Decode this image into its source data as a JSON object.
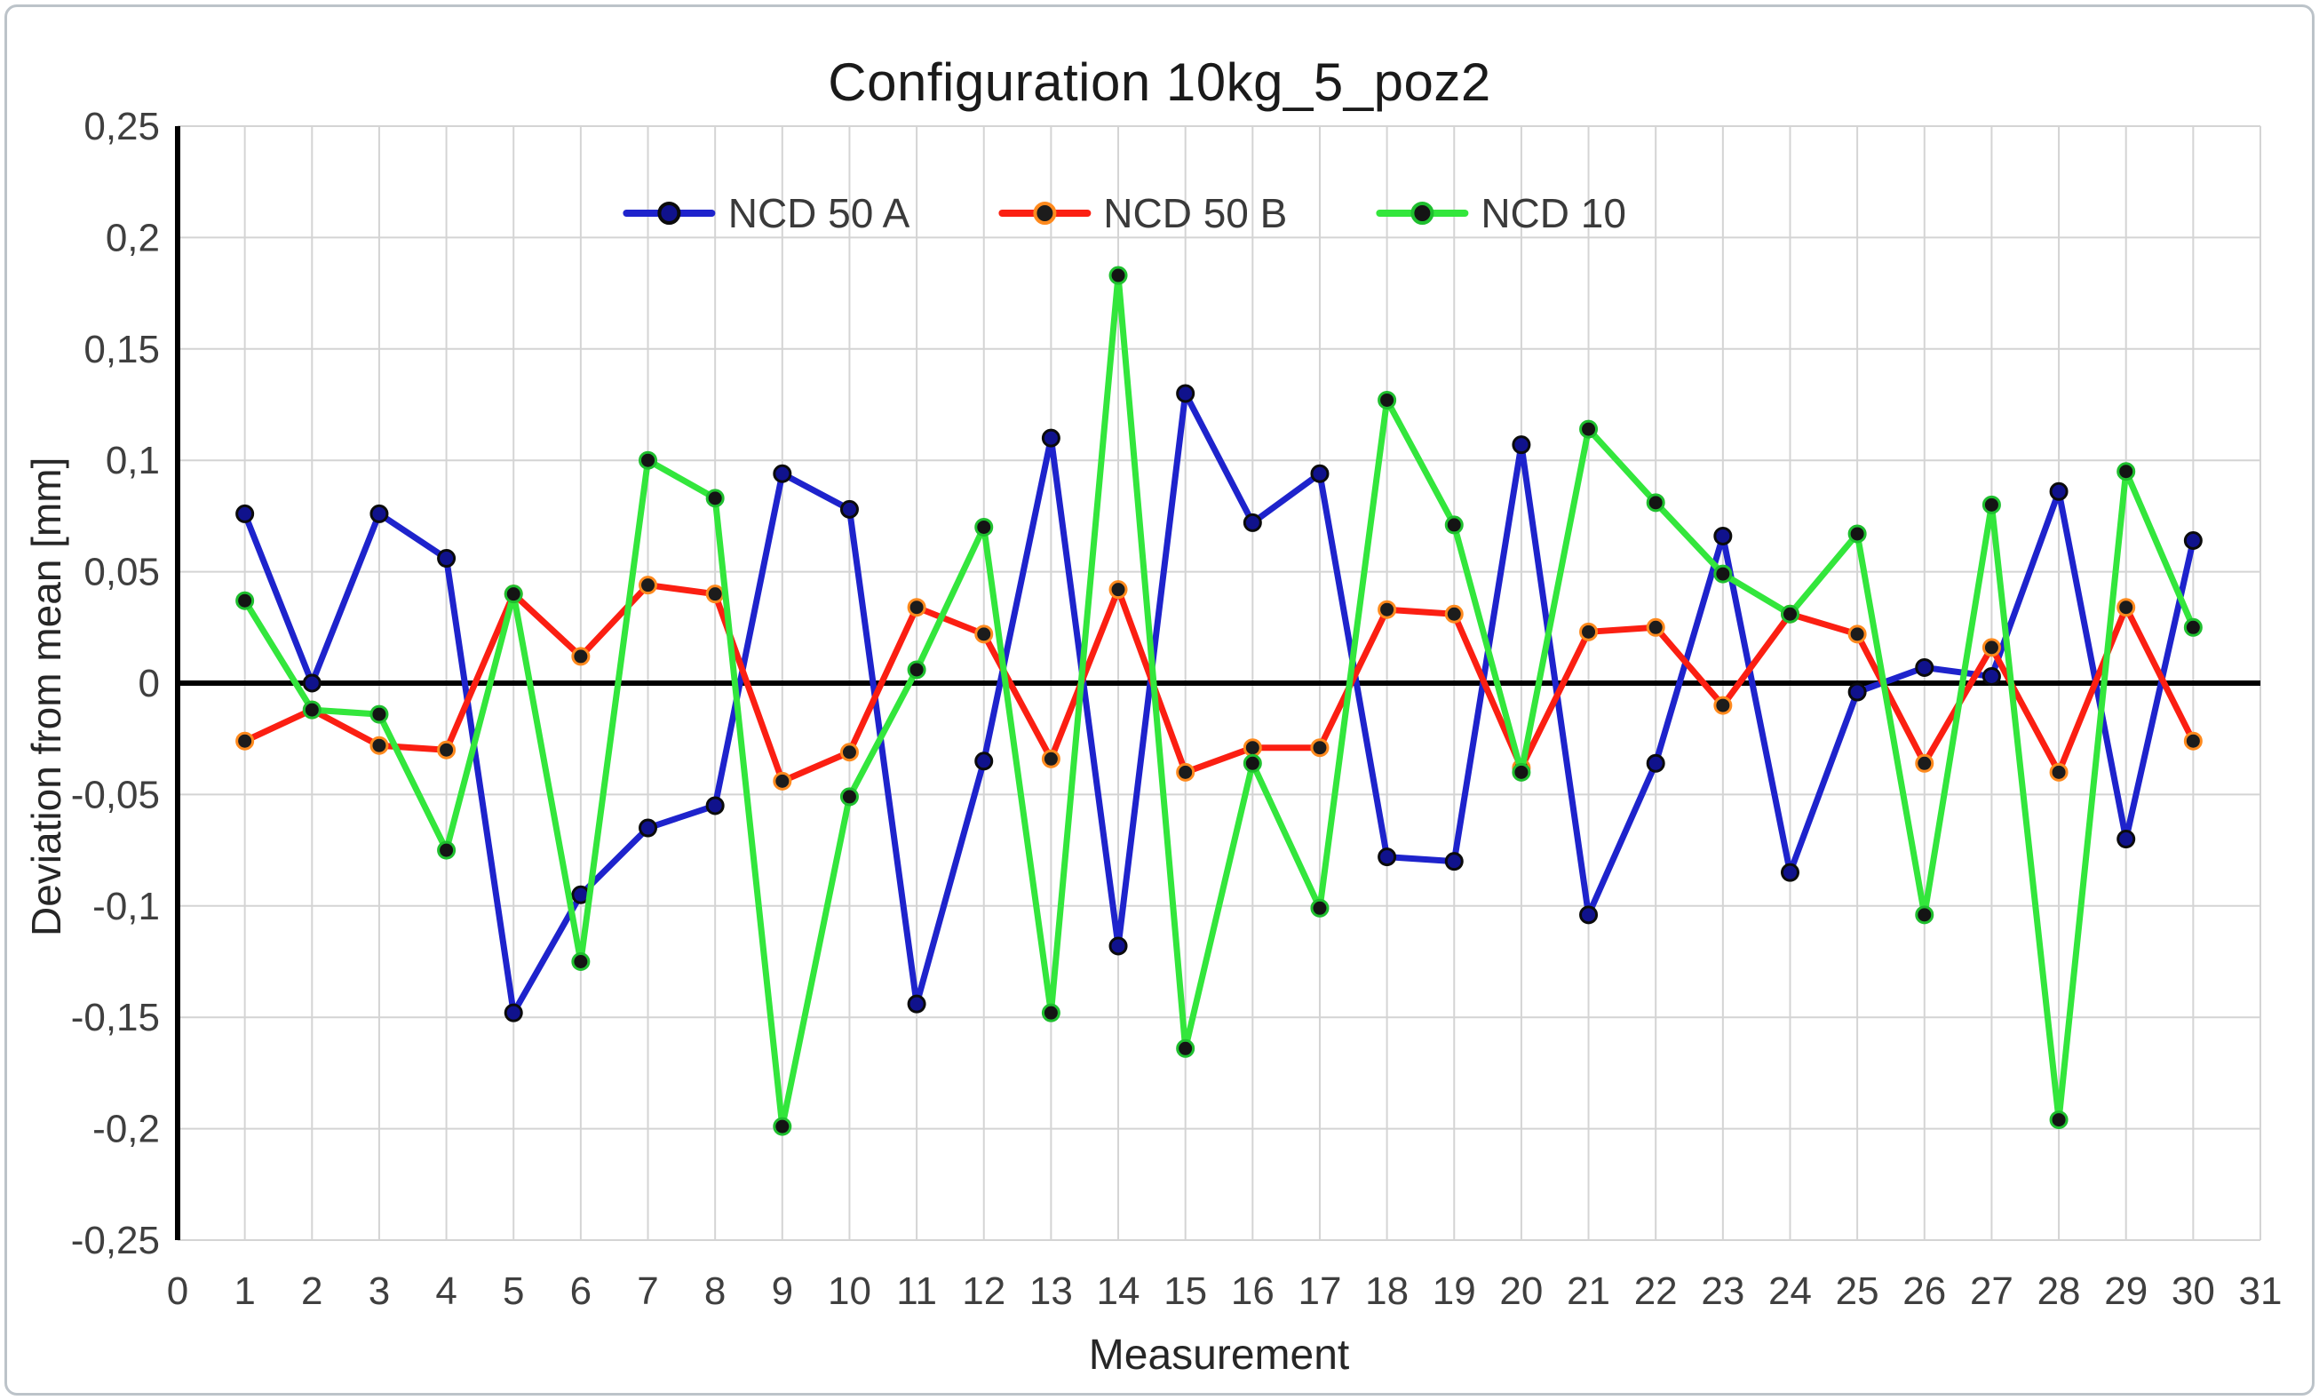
{
  "chart_data": {
    "type": "line",
    "title": "Configuration 10kg_5_poz2",
    "xlabel": "Measurement",
    "ylabel": "Deviation from mean [mm]",
    "xlim": [
      0,
      31
    ],
    "ylim": [
      -0.25,
      0.25
    ],
    "x_ticks": [
      0,
      1,
      2,
      3,
      4,
      5,
      6,
      7,
      8,
      9,
      10,
      11,
      12,
      13,
      14,
      15,
      16,
      17,
      18,
      19,
      20,
      21,
      22,
      23,
      24,
      25,
      26,
      27,
      28,
      29,
      30,
      31
    ],
    "y_ticks": [
      0.25,
      0.2,
      0.15,
      0.1,
      0.05,
      0,
      -0.05,
      -0.1,
      -0.15,
      -0.2,
      -0.25
    ],
    "y_tick_labels": [
      "0,25",
      "0,2",
      "0,15",
      "0,1",
      "0,05",
      "0",
      "-0,05",
      "-0,1",
      "-0,15",
      "-0,2",
      "-0,25"
    ],
    "grid": true,
    "grid_color": "#d4d4d4",
    "axis_color": "#000000",
    "tick_label_color": "#3f3f3f",
    "legend_position": "top-center-inside",
    "x": [
      1,
      2,
      3,
      4,
      5,
      6,
      7,
      8,
      9,
      10,
      11,
      12,
      13,
      14,
      15,
      16,
      17,
      18,
      19,
      20,
      21,
      22,
      23,
      24,
      25,
      26,
      27,
      28,
      29,
      30
    ],
    "series": [
      {
        "name": "NCD 50 A",
        "color": "#1E23CC",
        "marker_fill": "#10128C",
        "marker_stroke": "#0b0b0b",
        "values": [
          0.076,
          0.0,
          0.076,
          0.056,
          -0.148,
          -0.095,
          -0.065,
          -0.055,
          0.094,
          0.078,
          -0.144,
          -0.035,
          0.11,
          -0.118,
          0.13,
          0.072,
          0.094,
          -0.078,
          -0.08,
          0.107,
          -0.104,
          -0.036,
          0.066,
          -0.085,
          -0.004,
          0.007,
          0.003,
          0.086,
          -0.07,
          0.064
        ]
      },
      {
        "name": "NCD 50 B",
        "color": "#FB1F12",
        "marker_fill": "#1c1c1c",
        "marker_stroke": "#FF8A1E",
        "values": [
          -0.026,
          -0.012,
          -0.028,
          -0.03,
          0.04,
          0.012,
          0.044,
          0.04,
          -0.044,
          -0.031,
          0.034,
          0.022,
          -0.034,
          0.042,
          -0.04,
          -0.029,
          -0.029,
          0.033,
          0.031,
          -0.038,
          0.023,
          0.025,
          -0.01,
          0.031,
          0.022,
          -0.036,
          0.016,
          -0.04,
          0.034,
          -0.026
        ]
      },
      {
        "name": "NCD 10",
        "color": "#33E63C",
        "marker_fill": "#141414",
        "marker_stroke": "#1FBF2F",
        "values": [
          0.037,
          -0.012,
          -0.014,
          -0.075,
          0.04,
          -0.125,
          0.1,
          0.083,
          -0.199,
          -0.051,
          0.006,
          0.07,
          -0.148,
          0.183,
          -0.164,
          -0.036,
          -0.101,
          0.127,
          0.071,
          -0.04,
          0.114,
          0.081,
          0.049,
          0.031,
          0.067,
          -0.104,
          0.08,
          -0.196,
          0.095,
          0.025
        ]
      }
    ]
  }
}
